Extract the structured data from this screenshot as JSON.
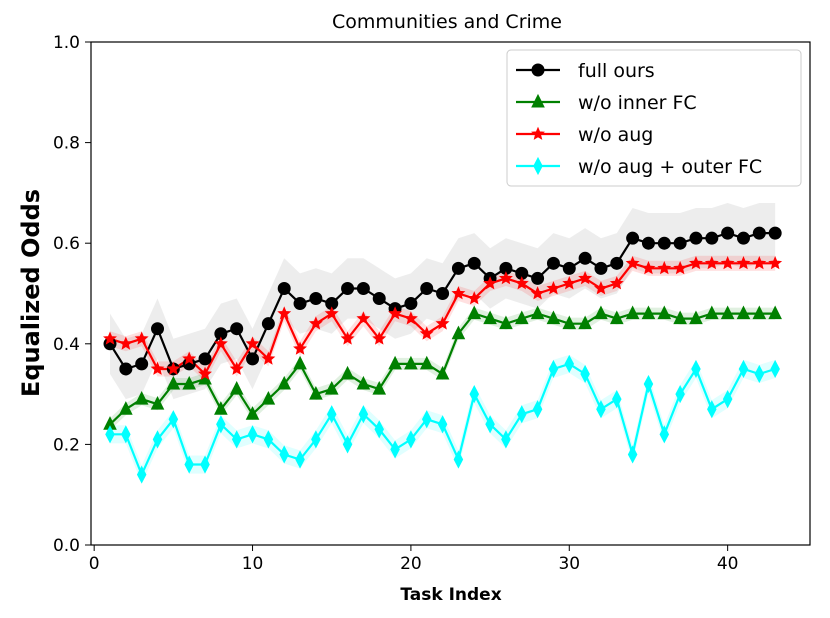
{
  "chart_data": {
    "type": "line",
    "title": "Communities and Crime",
    "xlabel": "Task Index",
    "ylabel": "Equalized Odds",
    "xlim": [
      -0.2,
      45.2
    ],
    "ylim": [
      0.0,
      1.0
    ],
    "xticks": [
      0,
      10,
      20,
      30,
      40
    ],
    "xtick_labels": [
      "0",
      "10",
      "20",
      "30",
      "40"
    ],
    "yticks": [
      0.0,
      0.2,
      0.4,
      0.6,
      0.8,
      1.0
    ],
    "ytick_labels": [
      "0.0",
      "0.2",
      "0.4",
      "0.6",
      "0.8",
      "1.0"
    ],
    "grid": false,
    "legend_position": "top-right",
    "x": [
      1,
      2,
      3,
      4,
      5,
      6,
      7,
      8,
      9,
      10,
      11,
      12,
      13,
      14,
      15,
      16,
      17,
      18,
      19,
      20,
      21,
      22,
      23,
      24,
      25,
      26,
      27,
      28,
      29,
      30,
      31,
      32,
      33,
      34,
      35,
      36,
      37,
      38,
      39,
      40,
      41,
      42,
      43
    ],
    "series": [
      {
        "name": "full ours",
        "color": "#000000",
        "marker": "circle",
        "band": 0.06,
        "values": [
          0.4,
          0.35,
          0.36,
          0.43,
          0.35,
          0.36,
          0.37,
          0.42,
          0.43,
          0.37,
          0.44,
          0.51,
          0.48,
          0.49,
          0.48,
          0.51,
          0.51,
          0.49,
          0.47,
          0.48,
          0.51,
          0.5,
          0.55,
          0.56,
          0.53,
          0.55,
          0.54,
          0.53,
          0.56,
          0.55,
          0.57,
          0.55,
          0.56,
          0.61,
          0.6,
          0.6,
          0.6,
          0.61,
          0.61,
          0.62,
          0.61,
          0.62,
          0.62
        ]
      },
      {
        "name": "w/o inner FC",
        "color": "#008000",
        "marker": "triangle",
        "band": 0.012,
        "values": [
          0.24,
          0.27,
          0.29,
          0.28,
          0.32,
          0.32,
          0.33,
          0.27,
          0.31,
          0.26,
          0.29,
          0.32,
          0.36,
          0.3,
          0.31,
          0.34,
          0.32,
          0.31,
          0.36,
          0.36,
          0.36,
          0.34,
          0.42,
          0.46,
          0.45,
          0.44,
          0.45,
          0.46,
          0.45,
          0.44,
          0.44,
          0.46,
          0.45,
          0.46,
          0.46,
          0.46,
          0.45,
          0.45,
          0.46,
          0.46,
          0.46,
          0.46,
          0.46
        ]
      },
      {
        "name": "w/o aug",
        "color": "#ff0000",
        "marker": "star",
        "band": 0.015,
        "values": [
          0.41,
          0.4,
          0.41,
          0.35,
          0.35,
          0.37,
          0.34,
          0.4,
          0.35,
          0.4,
          0.37,
          0.46,
          0.39,
          0.44,
          0.46,
          0.41,
          0.45,
          0.41,
          0.46,
          0.45,
          0.42,
          0.44,
          0.5,
          0.49,
          0.52,
          0.53,
          0.52,
          0.5,
          0.51,
          0.52,
          0.53,
          0.51,
          0.52,
          0.56,
          0.55,
          0.55,
          0.55,
          0.56,
          0.56,
          0.56,
          0.56,
          0.56,
          0.56
        ]
      },
      {
        "name": "w/o aug + outer FC",
        "color": "#00ffff",
        "marker": "diamond",
        "band": 0.018,
        "values": [
          0.22,
          0.22,
          0.14,
          0.21,
          0.25,
          0.16,
          0.16,
          0.24,
          0.21,
          0.22,
          0.21,
          0.18,
          0.17,
          0.21,
          0.26,
          0.2,
          0.26,
          0.23,
          0.19,
          0.21,
          0.25,
          0.24,
          0.17,
          0.3,
          0.24,
          0.21,
          0.26,
          0.27,
          0.35,
          0.36,
          0.34,
          0.27,
          0.29,
          0.18,
          0.32,
          0.22,
          0.3,
          0.35,
          0.27,
          0.29,
          0.35,
          0.34,
          0.35
        ]
      }
    ]
  }
}
